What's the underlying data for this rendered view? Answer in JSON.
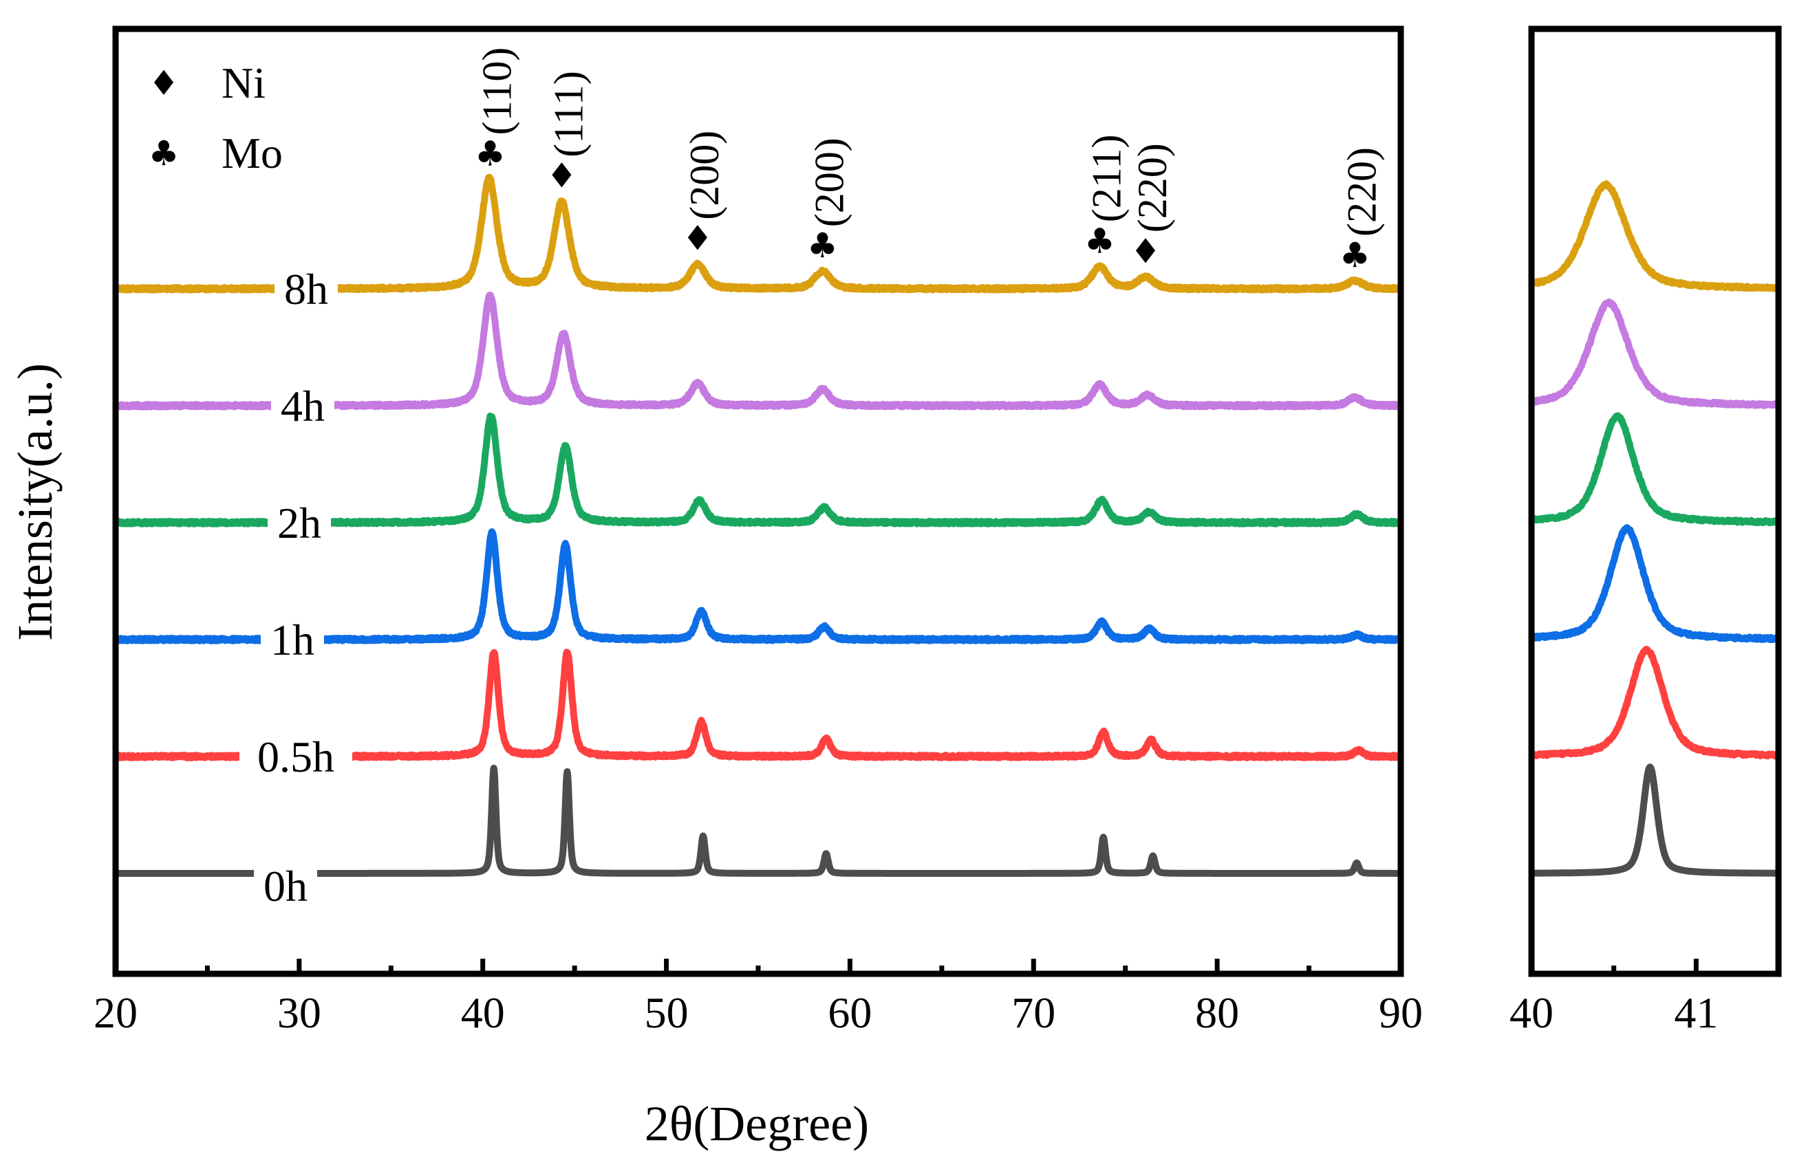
{
  "chart_data": [
    {
      "type": "line",
      "name": "main",
      "xlabel": "2θ(Degree)",
      "ylabel": "Intensity(a.u.)",
      "xlim": [
        20,
        90
      ],
      "xticks": [
        20,
        30,
        40,
        50,
        60,
        70,
        80,
        90
      ],
      "xtick_labels": [
        "20",
        "30",
        "40",
        "50",
        "60",
        "70",
        "80",
        "90"
      ],
      "yticks_shown": false,
      "grid": false,
      "legend": {
        "placement": "top-left",
        "entries": [
          {
            "symbol": "diamond",
            "glyph": "♦",
            "label": "Ni"
          },
          {
            "symbol": "club",
            "glyph": "♣",
            "label": "Mo"
          }
        ]
      },
      "series": [
        {
          "label": "0h",
          "color": "#4d4d4d",
          "baseline": 0,
          "peak_width": 0.14,
          "peaks": [
            [
              40.6,
              90
            ],
            [
              44.6,
              87
            ],
            [
              52.0,
              32
            ],
            [
              58.7,
              17
            ],
            [
              73.8,
              31
            ],
            [
              76.5,
              15
            ],
            [
              87.6,
              9
            ]
          ]
        },
        {
          "label": "0.5h",
          "color": "#ff4040",
          "baseline": 100,
          "peak_width": 0.3,
          "peaks": [
            [
              40.6,
              89
            ],
            [
              44.6,
              89
            ],
            [
              51.9,
              30
            ],
            [
              58.7,
              15
            ],
            [
              73.8,
              21
            ],
            [
              76.4,
              14
            ],
            [
              87.7,
              5
            ]
          ]
        },
        {
          "label": "1h",
          "color": "#0e6ee6",
          "baseline": 200,
          "peak_width": 0.35,
          "peaks": [
            [
              40.5,
              91
            ],
            [
              44.5,
              81
            ],
            [
              51.9,
              24
            ],
            [
              58.6,
              11
            ],
            [
              73.7,
              15
            ],
            [
              76.3,
              9
            ],
            [
              87.6,
              4
            ]
          ]
        },
        {
          "label": "2h",
          "color": "#1aa860",
          "baseline": 300,
          "peak_width": 0.4,
          "peaks": [
            [
              40.45,
              91
            ],
            [
              44.5,
              65
            ],
            [
              51.8,
              19
            ],
            [
              58.6,
              13
            ],
            [
              73.7,
              19
            ],
            [
              76.3,
              9
            ],
            [
              87.6,
              7
            ]
          ]
        },
        {
          "label": "4h",
          "color": "#c47ae0",
          "baseline": 400,
          "peak_width": 0.45,
          "peaks": [
            [
              40.4,
              94
            ],
            [
              44.4,
              61
            ],
            [
              51.7,
              19
            ],
            [
              58.5,
              14
            ],
            [
              73.6,
              18
            ],
            [
              76.2,
              9
            ],
            [
              87.5,
              7
            ]
          ]
        },
        {
          "label": "8h",
          "color": "#daa010",
          "baseline": 500,
          "peak_width": 0.5,
          "peaks": [
            [
              40.35,
              94
            ],
            [
              44.3,
              74
            ],
            [
              51.7,
              21
            ],
            [
              58.5,
              15
            ],
            [
              73.6,
              19
            ],
            [
              76.1,
              10
            ],
            [
              87.5,
              7
            ]
          ]
        }
      ],
      "annotations": [
        {
          "x": 40.4,
          "symbol": "♣",
          "hkl": "(110)"
        },
        {
          "x": 44.3,
          "symbol": "♦",
          "hkl": "(111)"
        },
        {
          "x": 51.7,
          "symbol": "♦",
          "hkl": "(200)"
        },
        {
          "x": 58.5,
          "symbol": "♣",
          "hkl": "(200)"
        },
        {
          "x": 73.6,
          "symbol": "♣",
          "hkl": "(211)"
        },
        {
          "x": 76.1,
          "symbol": "♦",
          "hkl": "(220)"
        },
        {
          "x": 87.5,
          "symbol": "♣",
          "hkl": "(220)"
        }
      ]
    },
    {
      "type": "line",
      "name": "inset",
      "xlim": [
        40,
        41.5
      ],
      "xticks": [
        40,
        41
      ],
      "xtick_labels": [
        "40",
        "41"
      ],
      "yticks_shown": false,
      "series": [
        {
          "label": "0h",
          "color": "#4d4d4d",
          "baseline": 0,
          "peak": [
            40.72,
            91
          ],
          "peak_width": 0.05
        },
        {
          "label": "0.5h",
          "color": "#ff4040",
          "baseline": 100,
          "peak": [
            40.7,
            91
          ],
          "peak_width": 0.12
        },
        {
          "label": "1h",
          "color": "#0e6ee6",
          "baseline": 200,
          "peak": [
            40.58,
            95
          ],
          "peak_width": 0.12
        },
        {
          "label": "2h",
          "color": "#1aa860",
          "baseline": 300,
          "peak": [
            40.52,
            91
          ],
          "peak_width": 0.12
        },
        {
          "label": "4h",
          "color": "#c47ae0",
          "baseline": 400,
          "peak": [
            40.47,
            88
          ],
          "peak_width": 0.14
        },
        {
          "label": "8h",
          "color": "#daa010",
          "baseline": 500,
          "peak": [
            40.45,
            89
          ],
          "peak_width": 0.15
        }
      ]
    }
  ]
}
